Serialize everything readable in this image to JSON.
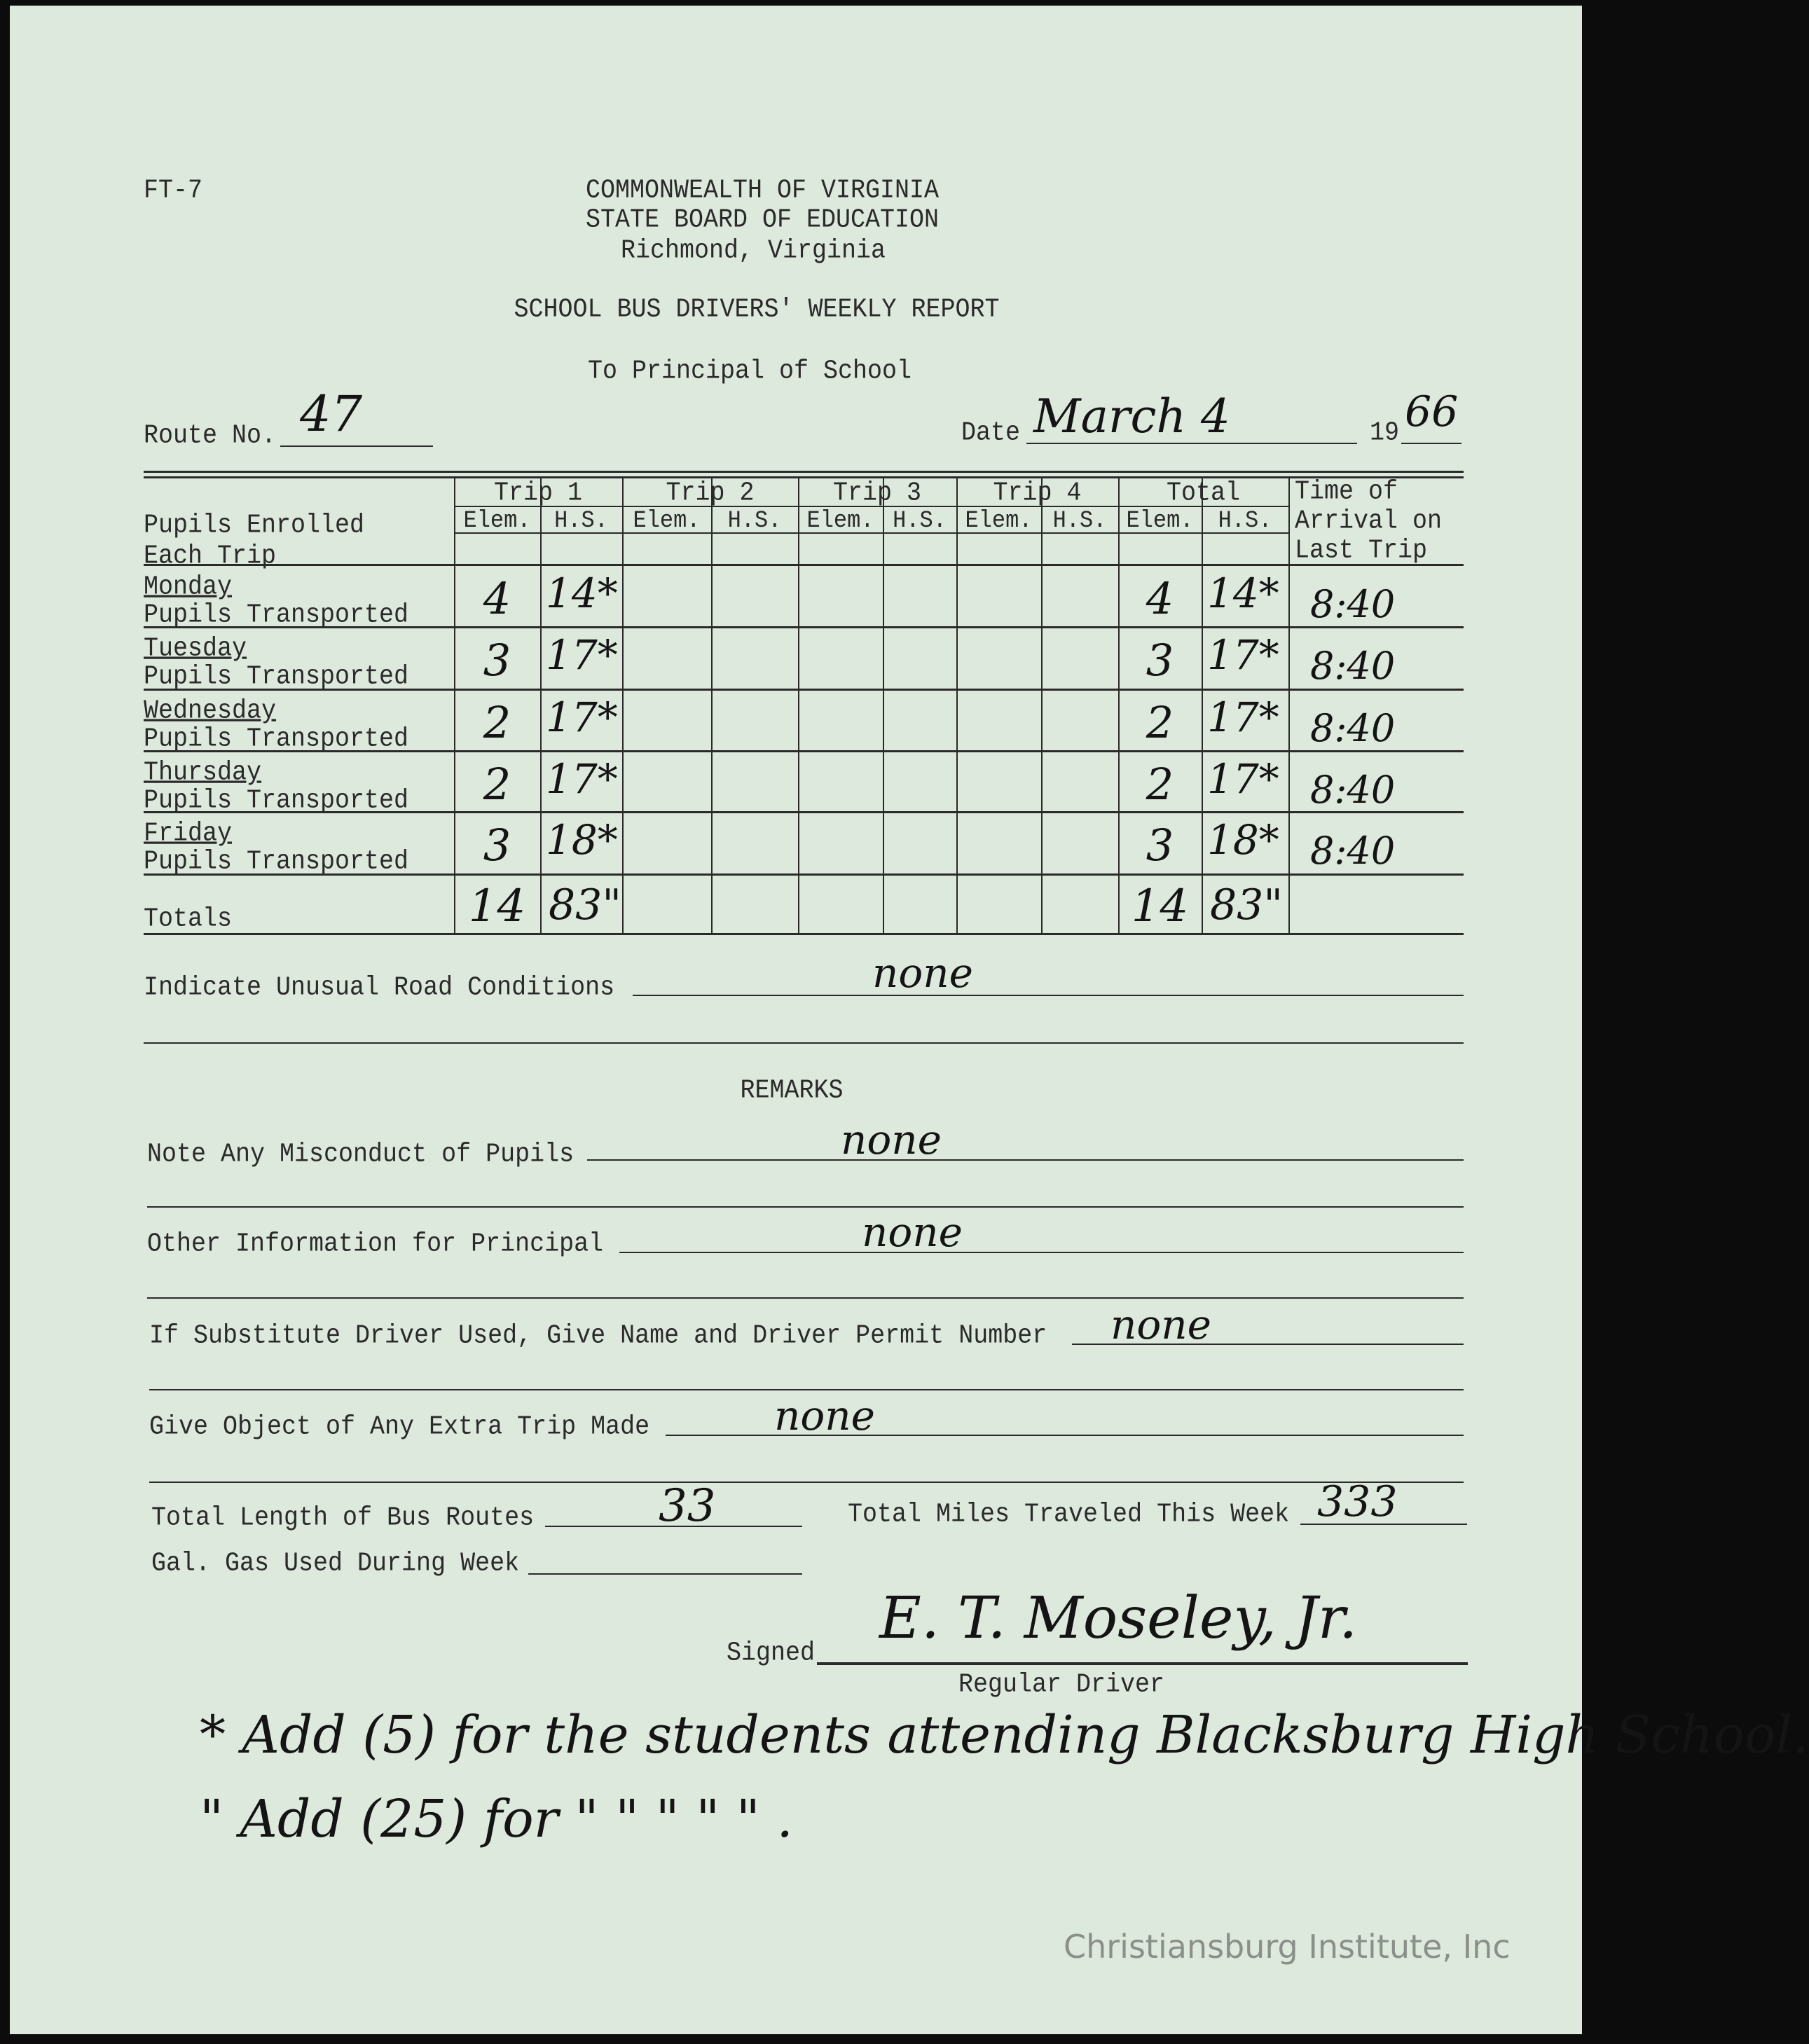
{
  "form_id": "FT-7",
  "header": {
    "line1": "COMMONWEALTH OF VIRGINIA",
    "line2": "STATE BOARD OF EDUCATION",
    "line3": "Richmond, Virginia",
    "title": "SCHOOL BUS DRIVERS' WEEKLY REPORT",
    "to": "To Principal of School"
  },
  "route": {
    "label": "Route No.",
    "value": "47"
  },
  "date": {
    "label": "Date",
    "value": "March 4",
    "year_prefix": "19",
    "year_suffix": "66"
  },
  "table": {
    "row_header_1": "Pupils Enrolled",
    "row_header_2": "Each Trip",
    "groups": [
      "Trip 1",
      "Trip 2",
      "Trip 3",
      "Trip 4",
      "Total"
    ],
    "sub_elem": "Elem.",
    "sub_hs": "H.S.",
    "time_header": [
      "Time of",
      "Arrival on",
      "Last Trip"
    ],
    "pupils_label": "Pupils Transported",
    "rows": [
      {
        "day": "Monday",
        "trip1_elem": "4",
        "trip1_hs": "14*",
        "total_elem": "4",
        "total_hs": "14*",
        "time": "8:40"
      },
      {
        "day": "Tuesday",
        "trip1_elem": "3",
        "trip1_hs": "17*",
        "total_elem": "3",
        "total_hs": "17*",
        "time": "8:40"
      },
      {
        "day": "Wednesday",
        "trip1_elem": "2",
        "trip1_hs": "17*",
        "total_elem": "2",
        "total_hs": "17*",
        "time": "8:40"
      },
      {
        "day": "Thursday",
        "trip1_elem": "2",
        "trip1_hs": "17*",
        "total_elem": "2",
        "total_hs": "17*",
        "time": "8:40"
      },
      {
        "day": "Friday",
        "trip1_elem": "3",
        "trip1_hs": "18*",
        "total_elem": "3",
        "total_hs": "18*",
        "time": "8:40"
      }
    ],
    "totals": {
      "label": "Totals",
      "trip1_elem": "14",
      "trip1_hs": "83\"",
      "total_elem": "14",
      "total_hs": "83\""
    }
  },
  "road": {
    "label": "Indicate Unusual Road Conditions",
    "value": "none"
  },
  "remarks": {
    "title": "REMARKS",
    "misconduct": {
      "label": "Note Any Misconduct of Pupils",
      "value": "none"
    },
    "other": {
      "label": "Other Information for Principal",
      "value": "none"
    },
    "substitute": {
      "label": "If Substitute Driver Used, Give Name and Driver Permit Number",
      "value": "none"
    },
    "extra_trip": {
      "label": "Give Object of Any Extra Trip Made",
      "value": "none"
    }
  },
  "route_length": {
    "label": "Total Length of Bus Routes",
    "value": "33"
  },
  "miles": {
    "label": "Total Miles Traveled This Week",
    "value": "333"
  },
  "gas": {
    "label": "Gal. Gas Used During Week",
    "value": ""
  },
  "signature": {
    "label": "Signed",
    "value": "E. T. Moseley, Jr.",
    "role": "Regular Driver"
  },
  "notes": [
    "* Add (5) for the students attending Blacksburg High School.",
    "\" Add (25) for   \"     \"      \"      \"     \"  ."
  ],
  "watermark": "Christiansburg Institute, Inc"
}
